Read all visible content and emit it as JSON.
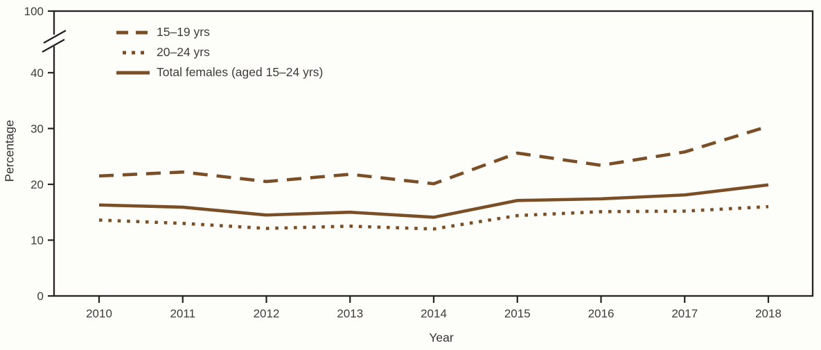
{
  "figure": {
    "background": "#fdfdf9",
    "line_color": "#7a4e26",
    "axis_color": "#262223",
    "text_color": "#3f3b3c"
  },
  "chart_data": {
    "type": "line",
    "title": "",
    "xlabel": "Year",
    "ylabel": "Percentage",
    "x": [
      "2010",
      "2011",
      "2012",
      "2013",
      "2014",
      "2015",
      "2016",
      "2017",
      "2018"
    ],
    "y_ticks": [
      0,
      10,
      20,
      30,
      40
    ],
    "y_axis_break": {
      "between": [
        40,
        100
      ],
      "top_tick_label": "100"
    },
    "ylim_display": [
      0,
      45
    ],
    "grid": false,
    "legend_position": "top-left-inside",
    "series": [
      {
        "name": "15–19 yrs",
        "style": "dashed",
        "values": [
          21.5,
          22.2,
          20.5,
          21.8,
          20.1,
          25.6,
          23.4,
          25.8,
          30.4
        ]
      },
      {
        "name": "20–24 yrs",
        "style": "dotted",
        "values": [
          13.6,
          13.0,
          12.1,
          12.5,
          12.0,
          14.4,
          15.1,
          15.2,
          16.0
        ]
      },
      {
        "name": "Total females (aged 15–24 yrs)",
        "style": "solid",
        "values": [
          16.3,
          15.9,
          14.5,
          15.0,
          14.1,
          17.1,
          17.4,
          18.1,
          19.9
        ]
      }
    ]
  }
}
